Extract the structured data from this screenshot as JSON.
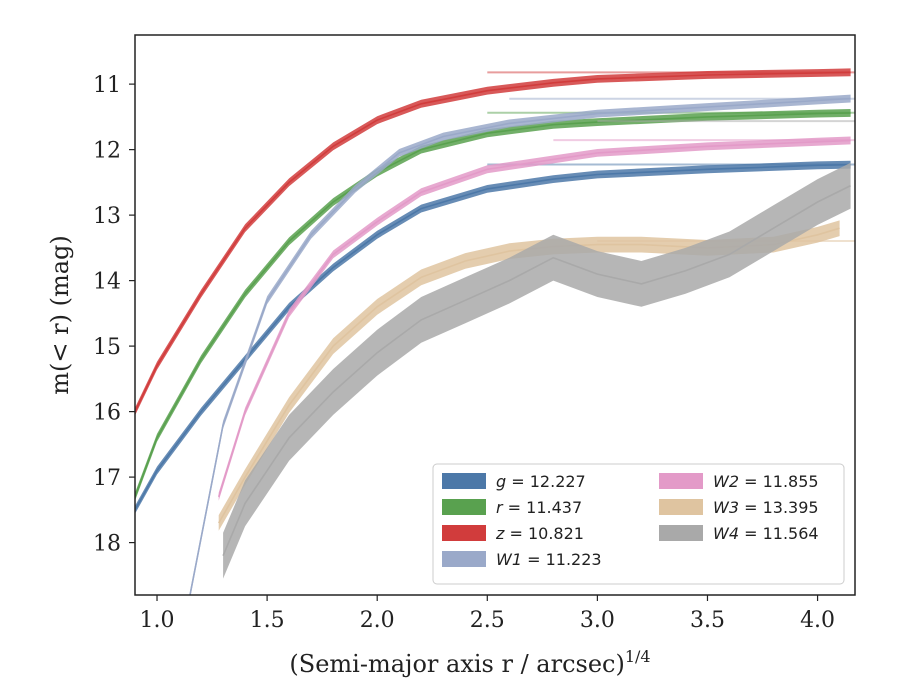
{
  "chart_data": {
    "type": "line",
    "xlabel": "(Semi-major axis r / arcsec)",
    "xlabel_superscript": "1/4",
    "ylabel": "m(< r) (mag)",
    "xlim": [
      0.9,
      4.17
    ],
    "ylim": [
      18.8,
      10.25
    ],
    "y_inverted": true,
    "x_ticks": [
      1.0,
      1.5,
      2.0,
      2.5,
      3.0,
      3.5,
      4.0
    ],
    "x_tick_labels": [
      "1.0",
      "1.5",
      "2.0",
      "2.5",
      "3.0",
      "3.5",
      "4.0"
    ],
    "y_ticks": [
      11,
      12,
      13,
      14,
      15,
      16,
      17,
      18
    ],
    "y_tick_labels": [
      "11",
      "12",
      "13",
      "14",
      "15",
      "16",
      "17",
      "18"
    ],
    "grid": false,
    "legend_position": "lower-right",
    "legend_columns": 2,
    "series": [
      {
        "name": "g = 12.227",
        "legend_var": "g",
        "legend_value": "= 12.227",
        "color": "#4c78a8",
        "x": [
          0.9,
          1.0,
          1.2,
          1.4,
          1.6,
          1.8,
          2.0,
          2.2,
          2.5,
          2.8,
          3.0,
          3.5,
          4.0,
          4.15
        ],
        "y": [
          17.5,
          16.9,
          16.0,
          15.2,
          14.4,
          13.8,
          13.3,
          12.9,
          12.6,
          12.45,
          12.38,
          12.3,
          12.24,
          12.23
        ],
        "band": 0.06,
        "model": 12.227
      },
      {
        "name": "r = 11.437",
        "legend_var": "r",
        "legend_value": "= 11.437",
        "color": "#59a14f",
        "x": [
          0.9,
          1.0,
          1.2,
          1.4,
          1.6,
          1.8,
          2.0,
          2.2,
          2.5,
          2.8,
          3.0,
          3.5,
          4.0,
          4.15
        ],
        "y": [
          17.3,
          16.4,
          15.2,
          14.2,
          13.4,
          12.8,
          12.35,
          12.0,
          11.75,
          11.62,
          11.58,
          11.5,
          11.45,
          11.44
        ],
        "band": 0.06,
        "model": 11.437
      },
      {
        "name": "z = 10.821",
        "legend_var": "z",
        "legend_value": "= 10.821",
        "color": "#d13c3c",
        "x": [
          0.9,
          1.0,
          1.2,
          1.4,
          1.6,
          1.8,
          2.0,
          2.2,
          2.5,
          2.8,
          3.0,
          3.5,
          4.0,
          4.15
        ],
        "y": [
          16.0,
          15.3,
          14.2,
          13.2,
          12.5,
          11.95,
          11.55,
          11.3,
          11.1,
          10.98,
          10.92,
          10.86,
          10.83,
          10.82
        ],
        "band": 0.06,
        "model": 10.821
      },
      {
        "name": "W1 = 11.223",
        "legend_var": "W1",
        "legend_value": "= 11.223",
        "color": "#9aa9c9",
        "x": [
          1.15,
          1.3,
          1.5,
          1.7,
          1.9,
          2.1,
          2.3,
          2.6,
          3.0,
          3.5,
          4.0,
          4.15
        ],
        "y": [
          18.8,
          16.2,
          14.3,
          13.3,
          12.6,
          12.05,
          11.8,
          11.6,
          11.45,
          11.35,
          11.25,
          11.22
        ],
        "band": 0.06,
        "model": 11.223
      },
      {
        "name": "W2 = 11.855",
        "legend_var": "W2",
        "legend_value": "= 11.855",
        "color": "#e39ac8",
        "x": [
          1.28,
          1.4,
          1.6,
          1.8,
          2.0,
          2.2,
          2.5,
          2.8,
          3.0,
          3.5,
          4.0,
          4.15
        ],
        "y": [
          17.3,
          16.0,
          14.5,
          13.6,
          13.1,
          12.65,
          12.3,
          12.15,
          12.05,
          11.95,
          11.88,
          11.86
        ],
        "band": 0.06,
        "model": 11.855
      },
      {
        "name": "W3 = 13.395",
        "legend_var": "W3",
        "legend_value": "= 13.395",
        "color": "#dfc4a0",
        "x": [
          1.28,
          1.4,
          1.6,
          1.8,
          2.0,
          2.2,
          2.4,
          2.6,
          2.8,
          3.0,
          3.2,
          3.5,
          3.8,
          4.0,
          4.1
        ],
        "y": [
          17.7,
          17.0,
          15.9,
          15.0,
          14.4,
          13.95,
          13.7,
          13.55,
          13.48,
          13.45,
          13.45,
          13.5,
          13.45,
          13.3,
          13.2
        ],
        "band": 0.12,
        "model": 13.395
      },
      {
        "name": "W4 = 11.564",
        "legend_var": "W4",
        "legend_value": "= 11.564",
        "color": "#a9a9a9",
        "x": [
          1.3,
          1.4,
          1.5,
          1.6,
          1.8,
          2.0,
          2.2,
          2.4,
          2.6,
          2.8,
          3.0,
          3.2,
          3.4,
          3.6,
          3.8,
          4.0,
          4.15
        ],
        "y": [
          18.2,
          17.4,
          16.9,
          16.4,
          15.7,
          15.1,
          14.6,
          14.3,
          14.0,
          13.65,
          13.9,
          14.05,
          13.85,
          13.6,
          13.2,
          12.8,
          12.55
        ],
        "band": 0.35,
        "model": 11.564
      }
    ]
  }
}
